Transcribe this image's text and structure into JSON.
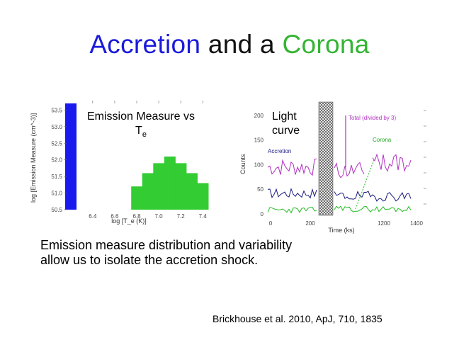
{
  "slide": {
    "title_part1": "Accretion",
    "title_part2": " and a ",
    "title_part3": "Corona",
    "caption_line1": "Emission measure distribution and variability",
    "caption_line2": "allow us to isolate the accretion shock.",
    "citation": "Brickhouse et al. 2010, ApJ, 710, 1835"
  },
  "colors": {
    "title_blue": "#1a1adb",
    "title_green": "#33b533",
    "bar_green": "#33cc33",
    "bar_blue": "#1a1aee",
    "accretion_magenta": "#b030c0",
    "navy": "#1a1a80"
  },
  "chart_data": [
    {
      "type": "bar",
      "title": "Emission Measure vs T",
      "title_subscript": "e",
      "xlabel": "log [T_e (K)]",
      "ylabel": "log [Emission Measure (cm^-3)]",
      "x_ticks": [
        "6.4",
        "6.6",
        "6.8",
        "7.0",
        "7.2",
        "7.4"
      ],
      "y_ticks": [
        "50.5",
        "51.0",
        "51.5",
        "52.0",
        "52.5",
        "53.0",
        "53.5"
      ],
      "ylim": [
        50.5,
        53.7
      ],
      "bars": [
        {
          "x": 6.2,
          "value": 53.7,
          "color": "blue"
        },
        {
          "x": 6.8,
          "value": 51.2
        },
        {
          "x": 6.9,
          "value": 51.6
        },
        {
          "x": 7.0,
          "value": 51.9
        },
        {
          "x": 7.1,
          "value": 52.1
        },
        {
          "x": 7.2,
          "value": 51.9
        },
        {
          "x": 7.3,
          "value": 51.6
        },
        {
          "x": 7.4,
          "value": 51.3
        }
      ]
    },
    {
      "type": "line",
      "title": "Light curve",
      "xlabel": "Time (ks)",
      "ylabel": "Counts",
      "x_ticks": [
        "0",
        "200",
        "1200",
        "1400"
      ],
      "y_ticks": [
        "0",
        "50",
        "100",
        "150",
        "200"
      ],
      "series_labels": [
        "Total (divided by 3)",
        "Corona",
        "Accretion"
      ]
    }
  ]
}
